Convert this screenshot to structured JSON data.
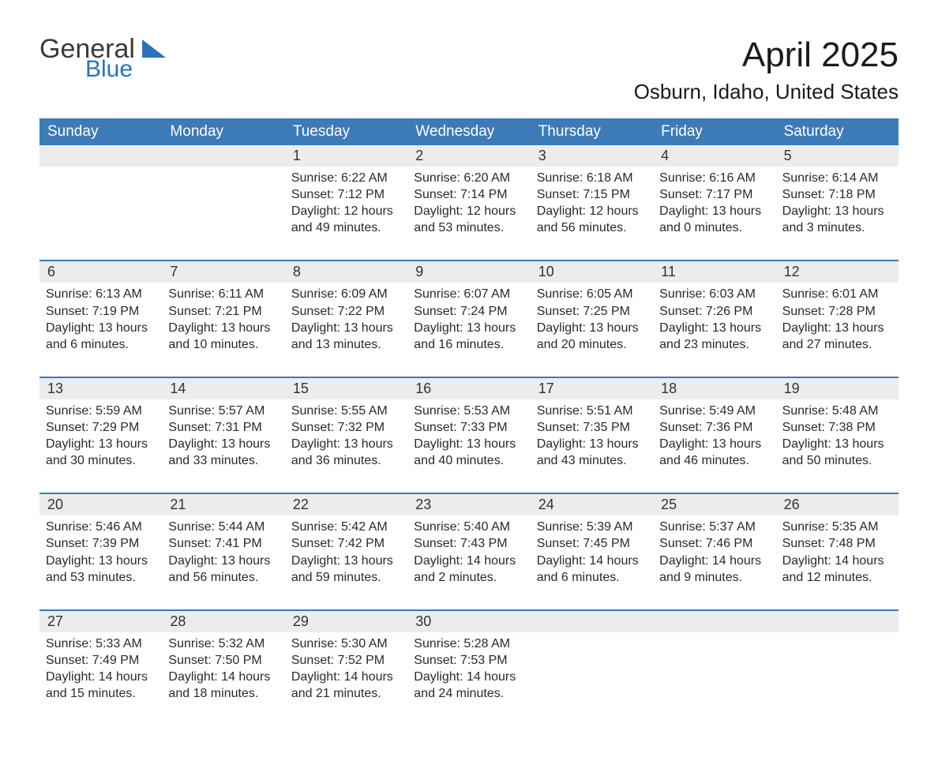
{
  "logo": {
    "general": "General",
    "blue": "Blue"
  },
  "title": "April 2025",
  "location": "Osburn, Idaho, United States",
  "colors": {
    "header_bg": "#3d7ab8",
    "header_text": "#ffffff",
    "daynum_bg": "#ececec",
    "week_border": "#3d7ab8",
    "logo_blue": "#2e72b5",
    "text": "#2a2a2a"
  },
  "weekdays": [
    "Sunday",
    "Monday",
    "Tuesday",
    "Wednesday",
    "Thursday",
    "Friday",
    "Saturday"
  ],
  "weeks": [
    {
      "nums": [
        "",
        "",
        "1",
        "2",
        "3",
        "4",
        "5"
      ],
      "cells": [
        {
          "sunrise": "",
          "sunset": "",
          "daylight1": "",
          "daylight2": ""
        },
        {
          "sunrise": "",
          "sunset": "",
          "daylight1": "",
          "daylight2": ""
        },
        {
          "sunrise": "Sunrise: 6:22 AM",
          "sunset": "Sunset: 7:12 PM",
          "daylight1": "Daylight: 12 hours",
          "daylight2": "and 49 minutes."
        },
        {
          "sunrise": "Sunrise: 6:20 AM",
          "sunset": "Sunset: 7:14 PM",
          "daylight1": "Daylight: 12 hours",
          "daylight2": "and 53 minutes."
        },
        {
          "sunrise": "Sunrise: 6:18 AM",
          "sunset": "Sunset: 7:15 PM",
          "daylight1": "Daylight: 12 hours",
          "daylight2": "and 56 minutes."
        },
        {
          "sunrise": "Sunrise: 6:16 AM",
          "sunset": "Sunset: 7:17 PM",
          "daylight1": "Daylight: 13 hours",
          "daylight2": "and 0 minutes."
        },
        {
          "sunrise": "Sunrise: 6:14 AM",
          "sunset": "Sunset: 7:18 PM",
          "daylight1": "Daylight: 13 hours",
          "daylight2": "and 3 minutes."
        }
      ]
    },
    {
      "nums": [
        "6",
        "7",
        "8",
        "9",
        "10",
        "11",
        "12"
      ],
      "cells": [
        {
          "sunrise": "Sunrise: 6:13 AM",
          "sunset": "Sunset: 7:19 PM",
          "daylight1": "Daylight: 13 hours",
          "daylight2": "and 6 minutes."
        },
        {
          "sunrise": "Sunrise: 6:11 AM",
          "sunset": "Sunset: 7:21 PM",
          "daylight1": "Daylight: 13 hours",
          "daylight2": "and 10 minutes."
        },
        {
          "sunrise": "Sunrise: 6:09 AM",
          "sunset": "Sunset: 7:22 PM",
          "daylight1": "Daylight: 13 hours",
          "daylight2": "and 13 minutes."
        },
        {
          "sunrise": "Sunrise: 6:07 AM",
          "sunset": "Sunset: 7:24 PM",
          "daylight1": "Daylight: 13 hours",
          "daylight2": "and 16 minutes."
        },
        {
          "sunrise": "Sunrise: 6:05 AM",
          "sunset": "Sunset: 7:25 PM",
          "daylight1": "Daylight: 13 hours",
          "daylight2": "and 20 minutes."
        },
        {
          "sunrise": "Sunrise: 6:03 AM",
          "sunset": "Sunset: 7:26 PM",
          "daylight1": "Daylight: 13 hours",
          "daylight2": "and 23 minutes."
        },
        {
          "sunrise": "Sunrise: 6:01 AM",
          "sunset": "Sunset: 7:28 PM",
          "daylight1": "Daylight: 13 hours",
          "daylight2": "and 27 minutes."
        }
      ]
    },
    {
      "nums": [
        "13",
        "14",
        "15",
        "16",
        "17",
        "18",
        "19"
      ],
      "cells": [
        {
          "sunrise": "Sunrise: 5:59 AM",
          "sunset": "Sunset: 7:29 PM",
          "daylight1": "Daylight: 13 hours",
          "daylight2": "and 30 minutes."
        },
        {
          "sunrise": "Sunrise: 5:57 AM",
          "sunset": "Sunset: 7:31 PM",
          "daylight1": "Daylight: 13 hours",
          "daylight2": "and 33 minutes."
        },
        {
          "sunrise": "Sunrise: 5:55 AM",
          "sunset": "Sunset: 7:32 PM",
          "daylight1": "Daylight: 13 hours",
          "daylight2": "and 36 minutes."
        },
        {
          "sunrise": "Sunrise: 5:53 AM",
          "sunset": "Sunset: 7:33 PM",
          "daylight1": "Daylight: 13 hours",
          "daylight2": "and 40 minutes."
        },
        {
          "sunrise": "Sunrise: 5:51 AM",
          "sunset": "Sunset: 7:35 PM",
          "daylight1": "Daylight: 13 hours",
          "daylight2": "and 43 minutes."
        },
        {
          "sunrise": "Sunrise: 5:49 AM",
          "sunset": "Sunset: 7:36 PM",
          "daylight1": "Daylight: 13 hours",
          "daylight2": "and 46 minutes."
        },
        {
          "sunrise": "Sunrise: 5:48 AM",
          "sunset": "Sunset: 7:38 PM",
          "daylight1": "Daylight: 13 hours",
          "daylight2": "and 50 minutes."
        }
      ]
    },
    {
      "nums": [
        "20",
        "21",
        "22",
        "23",
        "24",
        "25",
        "26"
      ],
      "cells": [
        {
          "sunrise": "Sunrise: 5:46 AM",
          "sunset": "Sunset: 7:39 PM",
          "daylight1": "Daylight: 13 hours",
          "daylight2": "and 53 minutes."
        },
        {
          "sunrise": "Sunrise: 5:44 AM",
          "sunset": "Sunset: 7:41 PM",
          "daylight1": "Daylight: 13 hours",
          "daylight2": "and 56 minutes."
        },
        {
          "sunrise": "Sunrise: 5:42 AM",
          "sunset": "Sunset: 7:42 PM",
          "daylight1": "Daylight: 13 hours",
          "daylight2": "and 59 minutes."
        },
        {
          "sunrise": "Sunrise: 5:40 AM",
          "sunset": "Sunset: 7:43 PM",
          "daylight1": "Daylight: 14 hours",
          "daylight2": "and 2 minutes."
        },
        {
          "sunrise": "Sunrise: 5:39 AM",
          "sunset": "Sunset: 7:45 PM",
          "daylight1": "Daylight: 14 hours",
          "daylight2": "and 6 minutes."
        },
        {
          "sunrise": "Sunrise: 5:37 AM",
          "sunset": "Sunset: 7:46 PM",
          "daylight1": "Daylight: 14 hours",
          "daylight2": "and 9 minutes."
        },
        {
          "sunrise": "Sunrise: 5:35 AM",
          "sunset": "Sunset: 7:48 PM",
          "daylight1": "Daylight: 14 hours",
          "daylight2": "and 12 minutes."
        }
      ]
    },
    {
      "nums": [
        "27",
        "28",
        "29",
        "30",
        "",
        "",
        ""
      ],
      "cells": [
        {
          "sunrise": "Sunrise: 5:33 AM",
          "sunset": "Sunset: 7:49 PM",
          "daylight1": "Daylight: 14 hours",
          "daylight2": "and 15 minutes."
        },
        {
          "sunrise": "Sunrise: 5:32 AM",
          "sunset": "Sunset: 7:50 PM",
          "daylight1": "Daylight: 14 hours",
          "daylight2": "and 18 minutes."
        },
        {
          "sunrise": "Sunrise: 5:30 AM",
          "sunset": "Sunset: 7:52 PM",
          "daylight1": "Daylight: 14 hours",
          "daylight2": "and 21 minutes."
        },
        {
          "sunrise": "Sunrise: 5:28 AM",
          "sunset": "Sunset: 7:53 PM",
          "daylight1": "Daylight: 14 hours",
          "daylight2": "and 24 minutes."
        },
        {
          "sunrise": "",
          "sunset": "",
          "daylight1": "",
          "daylight2": ""
        },
        {
          "sunrise": "",
          "sunset": "",
          "daylight1": "",
          "daylight2": ""
        },
        {
          "sunrise": "",
          "sunset": "",
          "daylight1": "",
          "daylight2": ""
        }
      ]
    }
  ]
}
